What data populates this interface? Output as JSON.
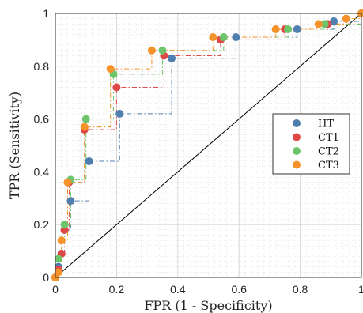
{
  "chart_data": {
    "type": "line",
    "title": "",
    "xlabel": "FPR (1 - Specificity)",
    "ylabel": "TPR (Sensitivity)",
    "xlim": [
      0,
      1
    ],
    "ylim": [
      0,
      1
    ],
    "x_ticks": [
      "0",
      "0.2",
      "0.4",
      "0.6",
      "0.8",
      "1"
    ],
    "y_ticks": [
      "0",
      "0.2",
      "0.4",
      "0.6",
      "0.8",
      "1"
    ],
    "grid": true,
    "minor_grid": true,
    "legend_position": "center-right",
    "reference_line": {
      "x": [
        0,
        1
      ],
      "y": [
        0,
        1
      ],
      "color": "#000000"
    },
    "series": [
      {
        "name": "HT",
        "color": "#4f7fae",
        "x": [
          0,
          0.01,
          0.02,
          0.03,
          0.05,
          0.11,
          0.21,
          0.38,
          0.59,
          0.79,
          0.91,
          1
        ],
        "y": [
          0,
          0.04,
          0.09,
          0.18,
          0.29,
          0.44,
          0.62,
          0.83,
          0.91,
          0.94,
          0.97,
          1
        ]
      },
      {
        "name": "CT1",
        "color": "#e04848",
        "x": [
          0,
          0.01,
          0.02,
          0.03,
          0.045,
          0.095,
          0.2,
          0.355,
          0.54,
          0.75,
          0.89,
          1
        ],
        "y": [
          0,
          0.03,
          0.09,
          0.18,
          0.36,
          0.56,
          0.72,
          0.84,
          0.9,
          0.94,
          0.96,
          1
        ]
      },
      {
        "name": "CT2",
        "color": "#6cc56a",
        "x": [
          0,
          0.01,
          0.02,
          0.03,
          0.05,
          0.1,
          0.19,
          0.35,
          0.55,
          0.76,
          0.88,
          1
        ],
        "y": [
          0,
          0.07,
          0.14,
          0.2,
          0.37,
          0.6,
          0.77,
          0.86,
          0.91,
          0.94,
          0.96,
          1
        ]
      },
      {
        "name": "CT3",
        "color": "#f5922a",
        "x": [
          0,
          0.01,
          0.02,
          0.04,
          0.095,
          0.18,
          0.315,
          0.515,
          0.72,
          0.86,
          0.95,
          1
        ],
        "y": [
          0,
          0.02,
          0.14,
          0.36,
          0.57,
          0.79,
          0.86,
          0.91,
          0.94,
          0.96,
          0.98,
          1
        ]
      }
    ]
  }
}
